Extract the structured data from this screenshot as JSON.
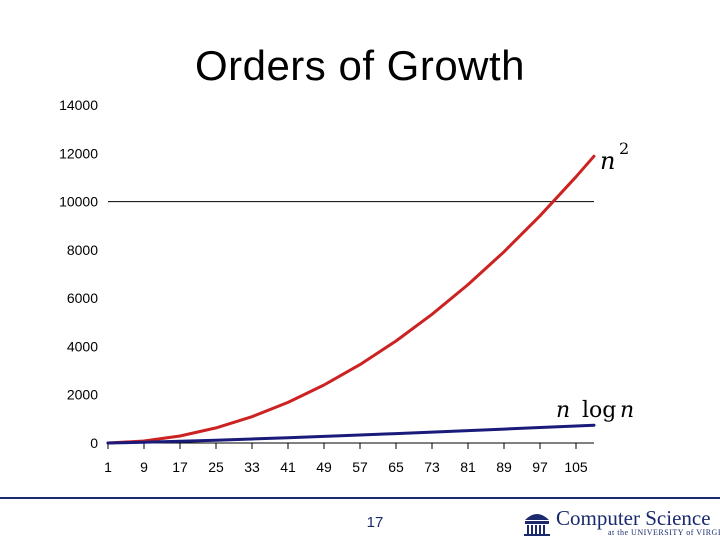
{
  "slide": {
    "title": "Orders of Growth",
    "page_number": "17"
  },
  "footer": {
    "logo_text": "Computer Science",
    "logo_subtext": "at the UNIVERSITY of VIRGINIA",
    "rule_color": "#1a2a6c"
  },
  "chart_data": {
    "type": "line",
    "title": "",
    "xlabel": "",
    "ylabel": "",
    "ylim": [
      0,
      14000
    ],
    "xlim": [
      1,
      109
    ],
    "yticks": [
      0,
      2000,
      4000,
      6000,
      8000,
      10000,
      12000,
      14000
    ],
    "xticks": [
      1,
      9,
      17,
      25,
      33,
      41,
      49,
      57,
      65,
      73,
      81,
      89,
      97,
      105
    ],
    "reference_line": {
      "y": 10000,
      "color": "#000000"
    },
    "grid": false,
    "series": [
      {
        "id": "n2",
        "label_base": "n",
        "label_sup": "2",
        "color": "#cc2222",
        "x": [
          1,
          9,
          17,
          25,
          33,
          41,
          49,
          57,
          65,
          73,
          81,
          89,
          97,
          105,
          109
        ],
        "values": [
          1,
          81,
          289,
          625,
          1089,
          1681,
          2401,
          3249,
          4225,
          5329,
          6561,
          7921,
          9409,
          11025,
          11881
        ]
      },
      {
        "id": "nlogn",
        "label_parts": [
          "n",
          "log",
          "n"
        ],
        "color": "#1a1a7a",
        "x": [
          1,
          9,
          17,
          25,
          33,
          41,
          49,
          57,
          65,
          73,
          81,
          89,
          97,
          105,
          109
        ],
        "values": [
          0,
          29,
          69,
          116,
          166,
          220,
          275,
          332,
          391,
          452,
          514,
          576,
          640,
          705,
          738
        ]
      }
    ]
  }
}
